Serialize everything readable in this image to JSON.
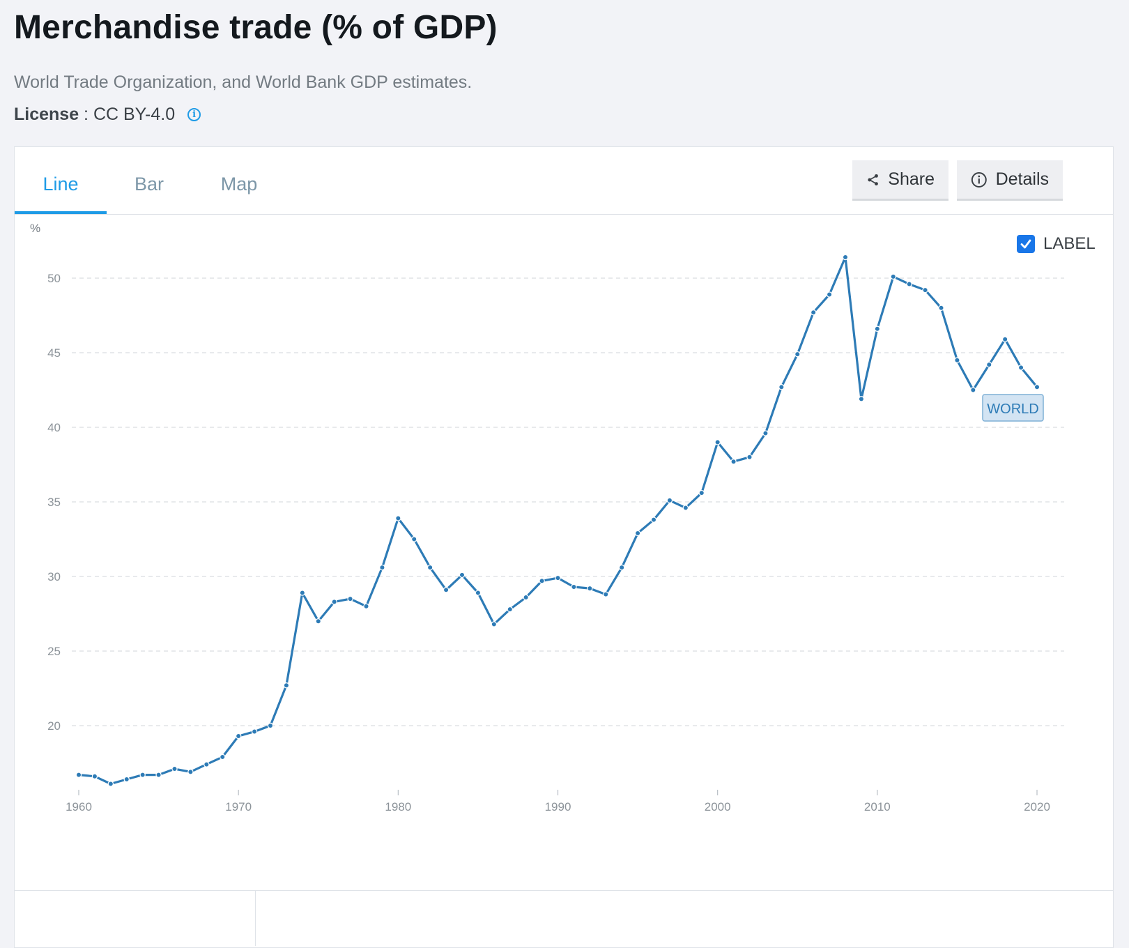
{
  "header": {
    "title": "Merchandise trade (% of GDP)",
    "source": "World Trade Organization, and World Bank GDP estimates.",
    "license_label": "License",
    "license_value": "CC BY-4.0"
  },
  "tabs": [
    {
      "label": "Line",
      "active": true
    },
    {
      "label": "Bar",
      "active": false
    },
    {
      "label": "Map",
      "active": false
    }
  ],
  "actions": {
    "share_label": "Share",
    "details_label": "Details"
  },
  "label_toggle": {
    "label": "LABEL",
    "checked": true
  },
  "colors": {
    "accent": "#1e9be6",
    "series": "#2d7bb6",
    "checkbox": "#1976e8"
  },
  "chart_data": {
    "type": "line",
    "ylabel": "%",
    "xlim": [
      1960,
      2020
    ],
    "ylim": [
      15.5,
      53
    ],
    "yticks": [
      20,
      25,
      30,
      35,
      40,
      45,
      50
    ],
    "xticks": [
      1960,
      1970,
      1980,
      1990,
      2000,
      2010,
      2020
    ],
    "grid": true,
    "series": [
      {
        "name": "WORLD",
        "x": [
          1960,
          1961,
          1962,
          1963,
          1964,
          1965,
          1966,
          1967,
          1968,
          1969,
          1970,
          1971,
          1972,
          1973,
          1974,
          1975,
          1976,
          1977,
          1978,
          1979,
          1980,
          1981,
          1982,
          1983,
          1984,
          1985,
          1986,
          1987,
          1988,
          1989,
          1990,
          1991,
          1992,
          1993,
          1994,
          1995,
          1996,
          1997,
          1998,
          1999,
          2000,
          2001,
          2002,
          2003,
          2004,
          2005,
          2006,
          2007,
          2008,
          2009,
          2010,
          2011,
          2012,
          2013,
          2014,
          2015,
          2016,
          2017,
          2018,
          2019,
          2020
        ],
        "y": [
          16.7,
          16.6,
          16.1,
          16.4,
          16.7,
          16.7,
          17.1,
          16.9,
          17.4,
          17.9,
          19.3,
          19.6,
          20.0,
          22.7,
          28.9,
          27.0,
          28.3,
          28.5,
          28.0,
          30.6,
          33.9,
          32.5,
          30.6,
          29.1,
          30.1,
          28.9,
          26.8,
          27.8,
          28.6,
          29.7,
          29.9,
          29.3,
          29.2,
          28.8,
          30.6,
          32.9,
          33.8,
          35.1,
          34.6,
          35.6,
          39.0,
          37.7,
          38.0,
          39.6,
          42.7,
          44.9,
          47.7,
          48.9,
          51.4,
          41.9,
          46.6,
          50.1,
          49.6,
          49.2,
          48.0,
          44.5,
          42.5,
          44.2,
          45.9,
          44.0,
          42.7
        ]
      }
    ]
  }
}
